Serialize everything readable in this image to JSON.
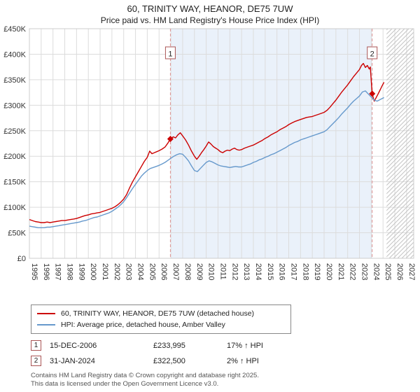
{
  "title": "60, TRINITY WAY, HEANOR, DE75 7UW",
  "subtitle": "Price paid vs. HM Land Registry's House Price Index (HPI)",
  "chart_data": {
    "type": "line",
    "xlim": [
      1995,
      2027.6
    ],
    "ylim": [
      0,
      450
    ],
    "grid": true,
    "legend_position": "bottom-left",
    "y_ticks": [
      [
        0,
        "£0"
      ],
      [
        50,
        "£50K"
      ],
      [
        100,
        "£100K"
      ],
      [
        150,
        "£150K"
      ],
      [
        200,
        "£200K"
      ],
      [
        250,
        "£250K"
      ],
      [
        300,
        "£300K"
      ],
      [
        350,
        "£350K"
      ],
      [
        400,
        "£400K"
      ],
      [
        450,
        "£450K"
      ]
    ],
    "x_ticks": [
      1995,
      1996,
      1997,
      1998,
      1999,
      2000,
      2001,
      2002,
      2003,
      2004,
      2005,
      2006,
      2007,
      2008,
      2009,
      2010,
      2011,
      2012,
      2013,
      2014,
      2015,
      2016,
      2017,
      2018,
      2019,
      2020,
      2021,
      2022,
      2023,
      2024,
      2025,
      2026,
      2027
    ],
    "shaded_region": [
      2006.96,
      2024.08
    ],
    "hatched_region": [
      2025.3,
      2027.6
    ],
    "colors": {
      "grid": "#dcdcdc",
      "plot_border": "#cccccc",
      "shaded_region_fill": "#eaf1fa",
      "hatch": "#c4c4c4",
      "dashed_line": "#dd9494",
      "annotation_box_border": "#aa5555",
      "tick_text": "#333333"
    },
    "markers": [
      {
        "label": "1",
        "x": 2006.96,
        "y": 233.995
      },
      {
        "label": "2",
        "x": 2024.08,
        "y": 322.5
      }
    ],
    "series": [
      {
        "name": "60, TRINITY WAY, HEANOR, DE75 7UW (detached house)",
        "color": "#cc0000",
        "points": [
          [
            1995.0,
            76
          ],
          [
            1995.25,
            74
          ],
          [
            1995.5,
            72
          ],
          [
            1995.75,
            71
          ],
          [
            1996.0,
            70
          ],
          [
            1996.25,
            70
          ],
          [
            1996.5,
            71
          ],
          [
            1996.75,
            70
          ],
          [
            1997.0,
            71
          ],
          [
            1997.25,
            72
          ],
          [
            1997.5,
            73
          ],
          [
            1997.75,
            74
          ],
          [
            1998.0,
            74
          ],
          [
            1998.25,
            75
          ],
          [
            1998.5,
            76
          ],
          [
            1998.75,
            77
          ],
          [
            1999.0,
            78
          ],
          [
            1999.25,
            80
          ],
          [
            1999.5,
            82
          ],
          [
            1999.75,
            84
          ],
          [
            2000.0,
            85
          ],
          [
            2000.25,
            87
          ],
          [
            2000.5,
            88
          ],
          [
            2000.75,
            89
          ],
          [
            2001.0,
            90
          ],
          [
            2001.25,
            92
          ],
          [
            2001.5,
            94
          ],
          [
            2001.75,
            96
          ],
          [
            2002.0,
            98
          ],
          [
            2002.25,
            101
          ],
          [
            2002.5,
            105
          ],
          [
            2002.75,
            110
          ],
          [
            2003.0,
            116
          ],
          [
            2003.25,
            125
          ],
          [
            2003.5,
            138
          ],
          [
            2003.75,
            150
          ],
          [
            2004.0,
            160
          ],
          [
            2004.25,
            170
          ],
          [
            2004.5,
            180
          ],
          [
            2004.75,
            190
          ],
          [
            2005.0,
            198
          ],
          [
            2005.2,
            210
          ],
          [
            2005.4,
            205
          ],
          [
            2005.6,
            207
          ],
          [
            2005.8,
            209
          ],
          [
            2006.0,
            211
          ],
          [
            2006.25,
            214
          ],
          [
            2006.5,
            218
          ],
          [
            2006.75,
            226
          ],
          [
            2006.96,
            234
          ],
          [
            2007.2,
            238
          ],
          [
            2007.4,
            236
          ],
          [
            2007.6,
            242
          ],
          [
            2007.8,
            246
          ],
          [
            2008.0,
            240
          ],
          [
            2008.25,
            232
          ],
          [
            2008.5,
            222
          ],
          [
            2008.75,
            210
          ],
          [
            2009.0,
            200
          ],
          [
            2009.2,
            194
          ],
          [
            2009.4,
            200
          ],
          [
            2009.6,
            207
          ],
          [
            2009.8,
            213
          ],
          [
            2010.0,
            220
          ],
          [
            2010.2,
            228
          ],
          [
            2010.4,
            224
          ],
          [
            2010.6,
            219
          ],
          [
            2010.8,
            216
          ],
          [
            2011.0,
            213
          ],
          [
            2011.2,
            209
          ],
          [
            2011.4,
            207
          ],
          [
            2011.6,
            210
          ],
          [
            2011.8,
            212
          ],
          [
            2012.0,
            211
          ],
          [
            2012.2,
            214
          ],
          [
            2012.4,
            216
          ],
          [
            2012.6,
            213
          ],
          [
            2012.8,
            212
          ],
          [
            2013.0,
            213
          ],
          [
            2013.25,
            216
          ],
          [
            2013.5,
            218
          ],
          [
            2013.75,
            220
          ],
          [
            2014.0,
            222
          ],
          [
            2014.25,
            225
          ],
          [
            2014.5,
            228
          ],
          [
            2014.75,
            231
          ],
          [
            2015.0,
            235
          ],
          [
            2015.25,
            238
          ],
          [
            2015.5,
            242
          ],
          [
            2015.75,
            245
          ],
          [
            2016.0,
            248
          ],
          [
            2016.25,
            252
          ],
          [
            2016.5,
            255
          ],
          [
            2016.75,
            258
          ],
          [
            2017.0,
            262
          ],
          [
            2017.25,
            265
          ],
          [
            2017.5,
            268
          ],
          [
            2017.75,
            270
          ],
          [
            2018.0,
            272
          ],
          [
            2018.25,
            274
          ],
          [
            2018.5,
            276
          ],
          [
            2018.75,
            277
          ],
          [
            2019.0,
            278
          ],
          [
            2019.25,
            280
          ],
          [
            2019.5,
            282
          ],
          [
            2019.75,
            284
          ],
          [
            2020.0,
            286
          ],
          [
            2020.25,
            290
          ],
          [
            2020.5,
            296
          ],
          [
            2020.75,
            303
          ],
          [
            2021.0,
            310
          ],
          [
            2021.25,
            318
          ],
          [
            2021.5,
            326
          ],
          [
            2021.75,
            333
          ],
          [
            2022.0,
            340
          ],
          [
            2022.25,
            348
          ],
          [
            2022.5,
            356
          ],
          [
            2022.75,
            363
          ],
          [
            2023.0,
            370
          ],
          [
            2023.17,
            378
          ],
          [
            2023.33,
            382
          ],
          [
            2023.5,
            374
          ],
          [
            2023.67,
            378
          ],
          [
            2023.83,
            371
          ],
          [
            2023.92,
            375
          ],
          [
            2024.08,
            322.5
          ],
          [
            2024.25,
            308
          ],
          [
            2024.42,
            315
          ],
          [
            2024.58,
            322
          ],
          [
            2024.75,
            330
          ],
          [
            2024.92,
            338
          ],
          [
            2025.08,
            345
          ]
        ]
      },
      {
        "name": "HPI: Average price, detached house, Amber Valley",
        "color": "#6699cc",
        "points": [
          [
            1995.0,
            63
          ],
          [
            1995.25,
            62
          ],
          [
            1995.5,
            61
          ],
          [
            1995.75,
            60
          ],
          [
            1996.0,
            60
          ],
          [
            1996.25,
            60
          ],
          [
            1996.5,
            61
          ],
          [
            1996.75,
            61
          ],
          [
            1997.0,
            62
          ],
          [
            1997.25,
            63
          ],
          [
            1997.5,
            64
          ],
          [
            1997.75,
            65
          ],
          [
            1998.0,
            66
          ],
          [
            1998.25,
            67
          ],
          [
            1998.5,
            68
          ],
          [
            1998.75,
            69
          ],
          [
            1999.0,
            70
          ],
          [
            1999.25,
            71
          ],
          [
            1999.5,
            73
          ],
          [
            1999.75,
            74
          ],
          [
            2000.0,
            76
          ],
          [
            2000.25,
            78
          ],
          [
            2000.5,
            80
          ],
          [
            2000.75,
            81
          ],
          [
            2001.0,
            83
          ],
          [
            2001.25,
            85
          ],
          [
            2001.5,
            87
          ],
          [
            2001.75,
            89
          ],
          [
            2002.0,
            92
          ],
          [
            2002.25,
            96
          ],
          [
            2002.5,
            100
          ],
          [
            2002.75,
            105
          ],
          [
            2003.0,
            111
          ],
          [
            2003.25,
            119
          ],
          [
            2003.5,
            128
          ],
          [
            2003.75,
            137
          ],
          [
            2004.0,
            145
          ],
          [
            2004.25,
            153
          ],
          [
            2004.5,
            161
          ],
          [
            2004.75,
            167
          ],
          [
            2005.0,
            172
          ],
          [
            2005.25,
            176
          ],
          [
            2005.5,
            178
          ],
          [
            2005.75,
            180
          ],
          [
            2006.0,
            182
          ],
          [
            2006.25,
            185
          ],
          [
            2006.5,
            188
          ],
          [
            2006.75,
            192
          ],
          [
            2007.0,
            196
          ],
          [
            2007.25,
            200
          ],
          [
            2007.5,
            203
          ],
          [
            2007.75,
            205
          ],
          [
            2008.0,
            204
          ],
          [
            2008.25,
            198
          ],
          [
            2008.5,
            191
          ],
          [
            2008.75,
            181
          ],
          [
            2009.0,
            172
          ],
          [
            2009.25,
            170
          ],
          [
            2009.5,
            176
          ],
          [
            2009.75,
            182
          ],
          [
            2010.0,
            188
          ],
          [
            2010.25,
            191
          ],
          [
            2010.5,
            189
          ],
          [
            2010.75,
            186
          ],
          [
            2011.0,
            183
          ],
          [
            2011.25,
            181
          ],
          [
            2011.5,
            180
          ],
          [
            2011.75,
            179
          ],
          [
            2012.0,
            178
          ],
          [
            2012.25,
            179
          ],
          [
            2012.5,
            180
          ],
          [
            2012.75,
            179
          ],
          [
            2013.0,
            179
          ],
          [
            2013.25,
            181
          ],
          [
            2013.5,
            183
          ],
          [
            2013.75,
            185
          ],
          [
            2014.0,
            188
          ],
          [
            2014.25,
            190
          ],
          [
            2014.5,
            193
          ],
          [
            2014.75,
            195
          ],
          [
            2015.0,
            198
          ],
          [
            2015.25,
            200
          ],
          [
            2015.5,
            203
          ],
          [
            2015.75,
            205
          ],
          [
            2016.0,
            208
          ],
          [
            2016.25,
            211
          ],
          [
            2016.5,
            214
          ],
          [
            2016.75,
            217
          ],
          [
            2017.0,
            221
          ],
          [
            2017.25,
            224
          ],
          [
            2017.5,
            227
          ],
          [
            2017.75,
            229
          ],
          [
            2018.0,
            232
          ],
          [
            2018.25,
            234
          ],
          [
            2018.5,
            236
          ],
          [
            2018.75,
            238
          ],
          [
            2019.0,
            240
          ],
          [
            2019.25,
            242
          ],
          [
            2019.5,
            244
          ],
          [
            2019.75,
            246
          ],
          [
            2020.0,
            248
          ],
          [
            2020.25,
            252
          ],
          [
            2020.5,
            258
          ],
          [
            2020.75,
            264
          ],
          [
            2021.0,
            270
          ],
          [
            2021.25,
            276
          ],
          [
            2021.5,
            283
          ],
          [
            2021.75,
            289
          ],
          [
            2022.0,
            295
          ],
          [
            2022.25,
            302
          ],
          [
            2022.5,
            308
          ],
          [
            2022.75,
            313
          ],
          [
            2023.0,
            318
          ],
          [
            2023.25,
            326
          ],
          [
            2023.5,
            328
          ],
          [
            2023.75,
            322
          ],
          [
            2024.0,
            316
          ],
          [
            2024.25,
            310
          ],
          [
            2024.5,
            308
          ],
          [
            2024.75,
            311
          ],
          [
            2025.08,
            315
          ]
        ]
      }
    ]
  },
  "annotations": [
    {
      "num": "1",
      "date": "15-DEC-2006",
      "price": "£233,995",
      "hpi": "17% ↑ HPI"
    },
    {
      "num": "2",
      "date": "31-JAN-2024",
      "price": "£322,500",
      "hpi": "2% ↑ HPI"
    }
  ],
  "footer": {
    "line1": "Contains HM Land Registry data © Crown copyright and database right 2025.",
    "line2": "This data is licensed under the Open Government Licence v3.0."
  }
}
